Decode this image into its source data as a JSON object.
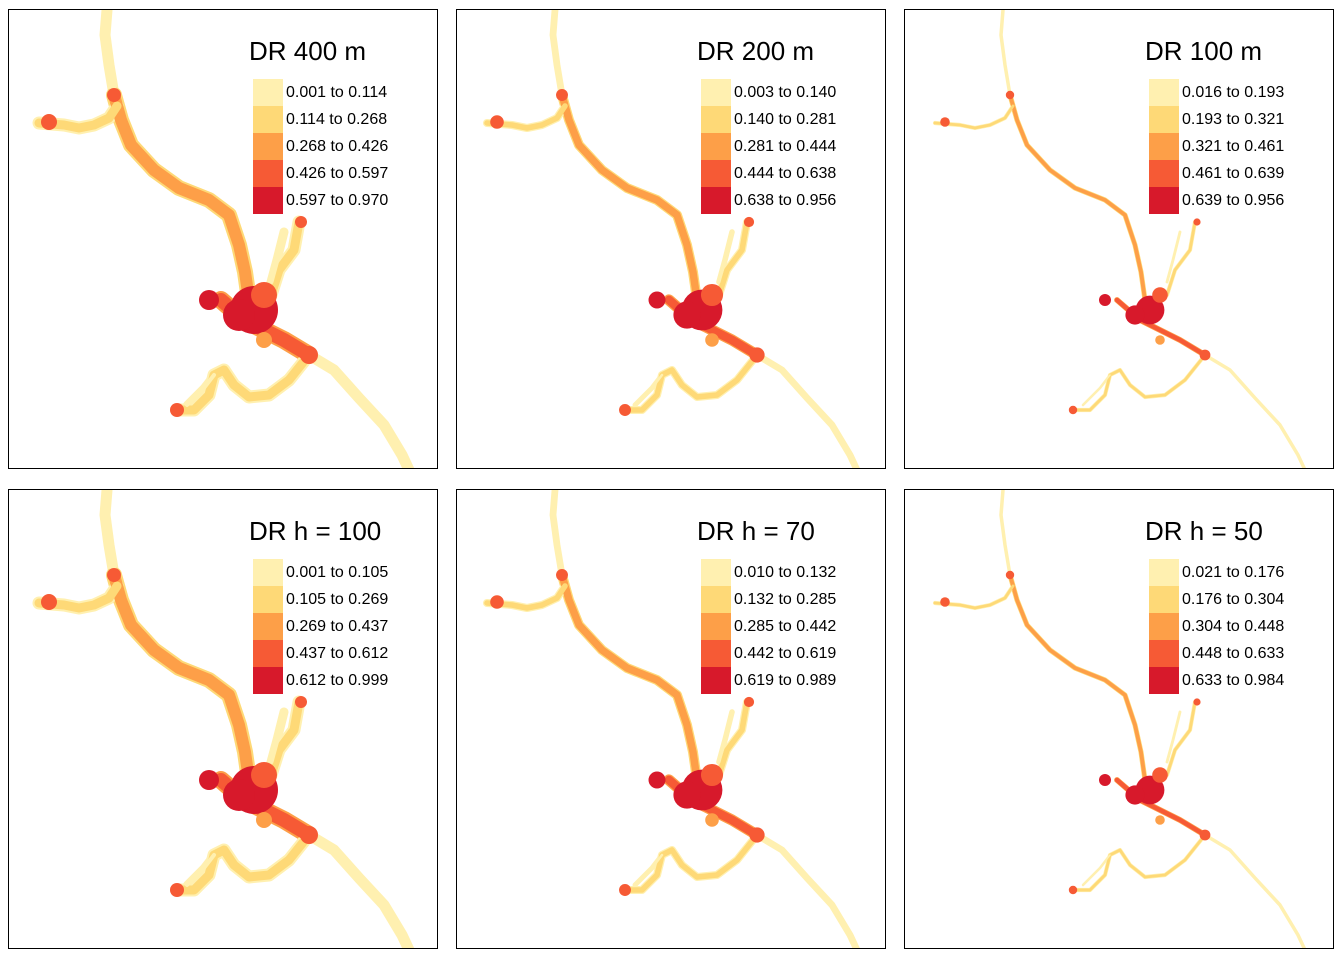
{
  "colors": [
    "#fff0b0",
    "#fed977",
    "#fd9f48",
    "#f65a35",
    "#d7192b"
  ],
  "panels": [
    {
      "title": "DR 400 m",
      "style": "wide",
      "legend": [
        "0.001 to 0.114",
        "0.114 to 0.268",
        "0.268 to 0.426",
        "0.426 to 0.597",
        "0.597 to 0.970"
      ]
    },
    {
      "title": "DR 200 m",
      "style": "medium",
      "legend": [
        "0.003 to 0.140",
        "0.140 to 0.281",
        "0.281 to 0.444",
        "0.444 to 0.638",
        "0.638 to 0.956"
      ]
    },
    {
      "title": "DR 100 m",
      "style": "narrow",
      "legend": [
        "0.016 to 0.193",
        "0.193 to 0.321",
        "0.321 to 0.461",
        "0.461 to 0.639",
        "0.639 to 0.956"
      ]
    },
    {
      "title": "DR h = 100",
      "style": "wide",
      "legend": [
        "0.001 to 0.105",
        "0.105 to 0.269",
        "0.269 to 0.437",
        "0.437 to 0.612",
        "0.612 to 0.999"
      ]
    },
    {
      "title": "DR h = 70",
      "style": "medium",
      "legend": [
        "0.010 to 0.132",
        "0.132 to 0.285",
        "0.285 to 0.442",
        "0.442 to 0.619",
        "0.619 to 0.989"
      ]
    },
    {
      "title": "DR h = 50",
      "style": "narrow",
      "legend": [
        "0.021 to 0.176",
        "0.176 to 0.304",
        "0.304 to 0.448",
        "0.448 to 0.633",
        "0.633 to 0.984"
      ]
    }
  ]
}
